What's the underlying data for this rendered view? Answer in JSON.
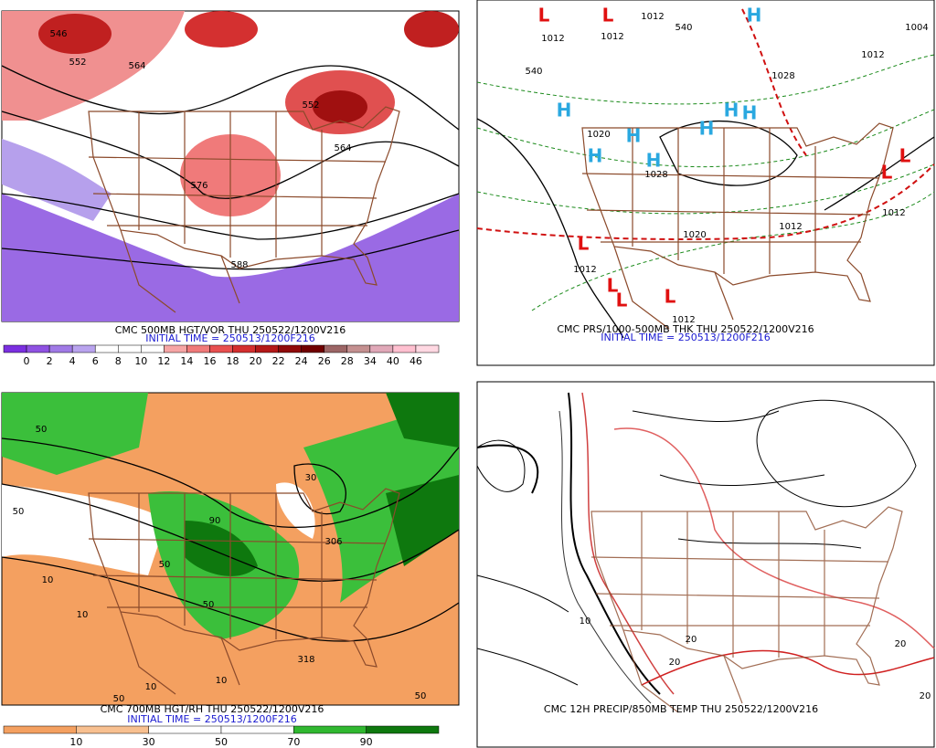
{
  "panels": [
    {
      "caption": "CMC 500MB HGT/VOR THU 250522/1200V216",
      "initial_time": "INITIAL TIME = 250513/1200F216",
      "labels": [
        "546",
        "552",
        "564",
        "552",
        "564",
        "576",
        "588"
      ],
      "colorbar": {
        "colors": [
          "#7b2fe0",
          "#8f52e2",
          "#a07ae6",
          "#b9a3ee",
          "#ffffff",
          "#ffffff",
          "#ffffff",
          "#f6a5a5",
          "#f07a7a",
          "#e85050",
          "#d42e2e",
          "#b41818",
          "#900a0a",
          "#700000",
          "#9c6666",
          "#c49090",
          "#e0a8b8",
          "#ffc0d0",
          "#ffd8e2"
        ],
        "labels": [
          0,
          2,
          4,
          6,
          8,
          10,
          12,
          14,
          16,
          18,
          20,
          22,
          24,
          26,
          28,
          34,
          40,
          46
        ]
      }
    },
    {
      "caption": "CMC PRS/1000-500MB THK THU 250522/1200V216",
      "initial_time": "INITIAL TIME = 250513/1200F216",
      "labels": [
        "L",
        "L",
        "1012",
        "1012",
        "1012",
        "540",
        "H",
        "1004",
        "1012",
        "540",
        "1028",
        "H",
        "H",
        "H",
        "H",
        "1020",
        "1028",
        "H",
        "H",
        "H",
        "1020",
        "1012",
        "1012",
        "L",
        "L",
        "L",
        "1012",
        "L",
        "L",
        "L",
        "1012"
      ]
    },
    {
      "caption": "CMC 700MB HGT/RH THU 250522/1200V216",
      "initial_time": "INITIAL TIME = 250513/1200F216",
      "labels": [
        "50",
        "50",
        "10",
        "10",
        "50",
        "90",
        "306",
        "318",
        "30",
        "50",
        "10",
        "50",
        "10",
        "50"
      ],
      "colorbar": {
        "colors": [
          "#f4a060",
          "#f8c090",
          "#ffffff",
          "#ffffff",
          "#30b830",
          "#0e780e"
        ],
        "labels": [
          10,
          30,
          50,
          70,
          90
        ]
      }
    },
    {
      "caption": "CMC 12H PRECIP/850MB TEMP THU 250522/1200V216",
      "labels": [
        "20",
        "20",
        "20",
        "10",
        "20"
      ]
    }
  ]
}
